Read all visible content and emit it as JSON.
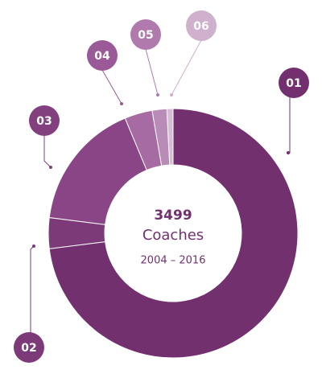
{
  "chart_data": {
    "type": "donut",
    "center_value": "3499",
    "center_label": "Coaches",
    "center_period": "2004 – 2016",
    "categories": [
      "01",
      "02",
      "03",
      "04",
      "05",
      "06"
    ],
    "values": [
      73,
      4,
      16.7,
      3.6,
      1.9,
      0.8
    ],
    "colors": [
      "#72306e",
      "#7c3a79",
      "#8a4587",
      "#a56ba2",
      "#b98cb7",
      "#d6bcd5"
    ],
    "label_colors": [
      "#72306e",
      "#7c3a79",
      "#83407f",
      "#9a5a97",
      "#b07aad",
      "#cfb0cd"
    ]
  }
}
